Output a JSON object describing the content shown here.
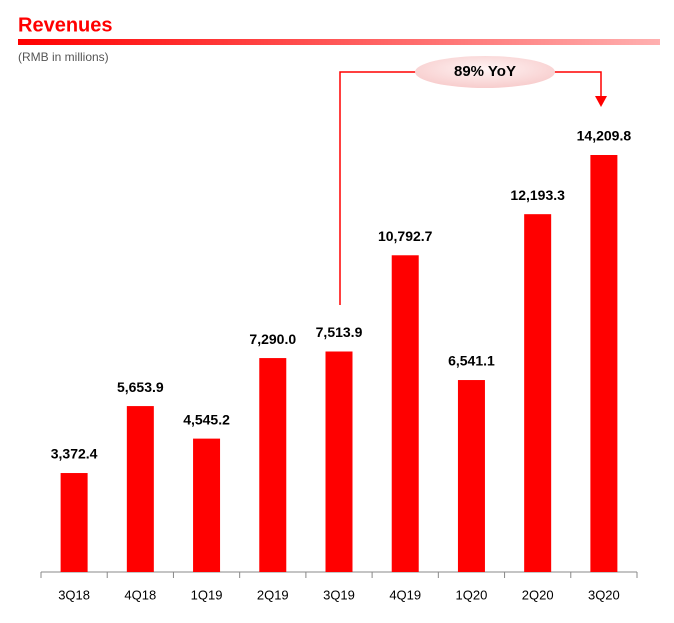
{
  "chart_data": {
    "type": "bar",
    "title": "Revenues",
    "subtitle": "(RMB in millions)",
    "annotation": "89% YoY",
    "categories": [
      "3Q18",
      "4Q18",
      "1Q19",
      "2Q19",
      "3Q19",
      "4Q19",
      "1Q20",
      "2Q20",
      "3Q20"
    ],
    "values": [
      3372.4,
      5653.9,
      4545.2,
      7290.0,
      7513.9,
      10792.7,
      6541.1,
      12193.3,
      14209.8
    ],
    "value_labels": [
      "3,372.4",
      "5,653.9",
      "4,545.2",
      "7,290.0",
      "7,513.9",
      "10,792.7",
      "6,541.1",
      "12,193.3",
      "14,209.8"
    ],
    "color": "#ff0000"
  }
}
